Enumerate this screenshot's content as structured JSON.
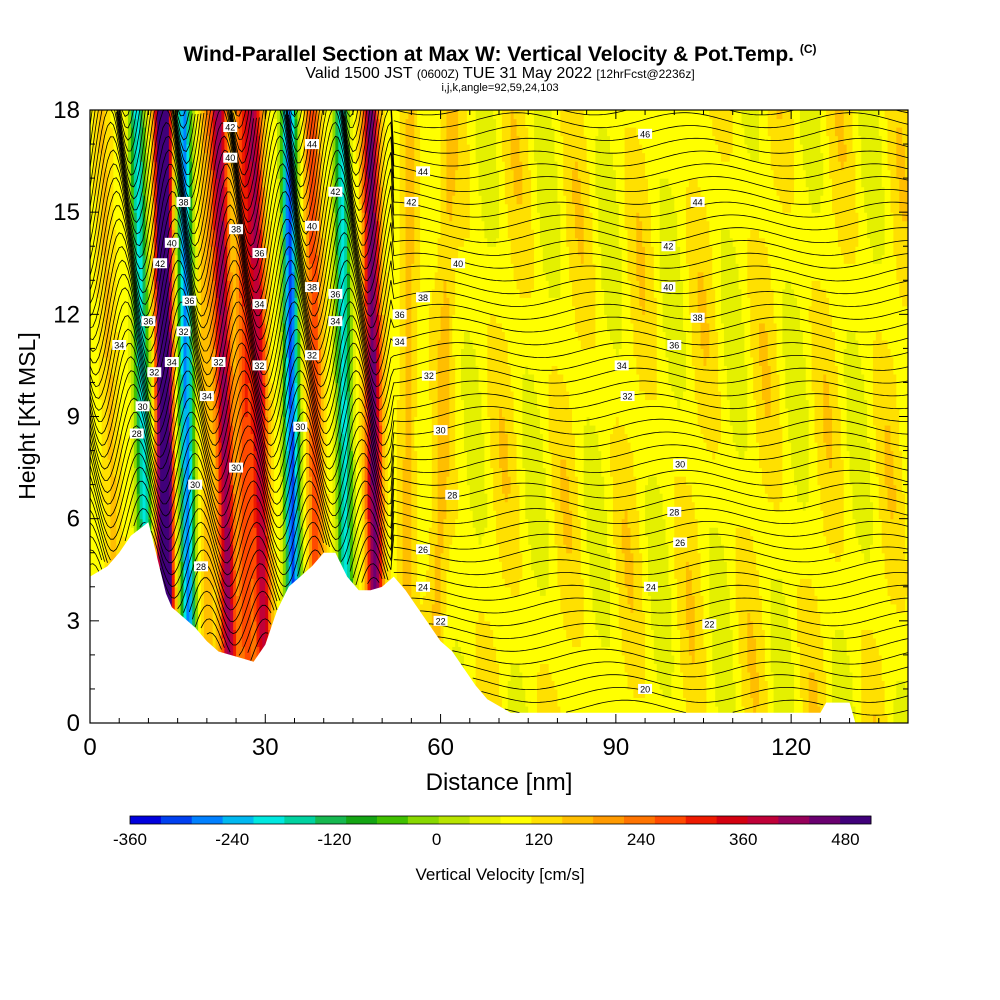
{
  "title": {
    "main": "Wind-Parallel Section at Max W: Vertical Velocity & Pot.Temp.",
    "main_mark": "(C)",
    "valid_prefix": "Valid 1500 JST",
    "valid_utc": "(0600Z)",
    "valid_date": "TUE 31 May 2022",
    "valid_fcst": "[12hrFcst@2236z]",
    "indices": "i,j,k,angle=92,59,24,103"
  },
  "colors": {
    "terrain": "#ffffff",
    "contour": "#000000",
    "bins": [
      "#0000dd",
      "#0040f0",
      "#0080ff",
      "#00b8f0",
      "#00e8e0",
      "#00d2a0",
      "#16b850",
      "#14a514",
      "#40c000",
      "#88d800",
      "#b8e400",
      "#e4f000",
      "#ffff00",
      "#ffe000",
      "#ffbe00",
      "#ff9a00",
      "#ff7400",
      "#ff4a00",
      "#ee1a00",
      "#d40010",
      "#c00038",
      "#96005a",
      "#6a0070",
      "#40007a"
    ]
  },
  "chart_data": {
    "type": "heatmap",
    "xlabel": "Distance [nm]",
    "ylabel": "Height [Kft MSL]",
    "xlim": [
      0,
      140
    ],
    "ylim": [
      0,
      18
    ],
    "x_ticks": [
      0,
      30,
      60,
      90,
      120
    ],
    "y_ticks": [
      0,
      3,
      6,
      9,
      12,
      15,
      18
    ],
    "colorbar": {
      "label": "Vertical Velocity [cm/s]",
      "min": -360,
      "max": 510,
      "step": 30,
      "tick_values": [
        -360,
        -240,
        -120,
        0,
        120,
        240,
        360,
        480
      ]
    },
    "vertical_velocity_bands": [
      {
        "x_bottom": 5,
        "x_top": 2,
        "w": 45
      },
      {
        "x_bottom": 10,
        "x_top": 8,
        "w": -240
      },
      {
        "x_bottom": 13,
        "x_top": 12.5,
        "w": 480
      },
      {
        "x_bottom": 17,
        "x_top": 16,
        "w": -300
      },
      {
        "x_bottom": 20,
        "x_top": 20,
        "w": 60
      },
      {
        "x_bottom": 24,
        "x_top": 22,
        "w": 270
      },
      {
        "x_bottom": 27,
        "x_top": 26,
        "w": 150
      },
      {
        "x_bottom": 30,
        "x_top": 28,
        "w": 240
      },
      {
        "x_bottom": 35,
        "x_top": 34,
        "w": -330
      },
      {
        "x_bottom": 39,
        "x_top": 38,
        "w": 150
      },
      {
        "x_bottom": 44,
        "x_top": 43,
        "w": -240
      },
      {
        "x_bottom": 49,
        "x_top": 48,
        "w": 300
      },
      {
        "x_bottom": 54,
        "x_top": 55,
        "w": 60
      },
      {
        "x_bottom": 59,
        "x_top": 62,
        "w": 90
      }
    ],
    "terrain_height_kft": [
      {
        "x": 0,
        "z": 4.3
      },
      {
        "x": 3,
        "z": 4.6
      },
      {
        "x": 5,
        "z": 5.0
      },
      {
        "x": 7,
        "z": 5.5
      },
      {
        "x": 10,
        "z": 5.9
      },
      {
        "x": 11,
        "z": 5.2
      },
      {
        "x": 12,
        "z": 4.5
      },
      {
        "x": 13,
        "z": 3.8
      },
      {
        "x": 14,
        "z": 3.4
      },
      {
        "x": 16,
        "z": 3.1
      },
      {
        "x": 18,
        "z": 2.8
      },
      {
        "x": 20,
        "z": 2.4
      },
      {
        "x": 22,
        "z": 2.1
      },
      {
        "x": 24,
        "z": 2.0
      },
      {
        "x": 26,
        "z": 1.9
      },
      {
        "x": 28,
        "z": 1.8
      },
      {
        "x": 30,
        "z": 2.3
      },
      {
        "x": 32,
        "z": 3.3
      },
      {
        "x": 34,
        "z": 4.0
      },
      {
        "x": 36,
        "z": 4.3
      },
      {
        "x": 38,
        "z": 4.6
      },
      {
        "x": 40,
        "z": 5.0
      },
      {
        "x": 42,
        "z": 5.0
      },
      {
        "x": 44,
        "z": 4.3
      },
      {
        "x": 46,
        "z": 3.9
      },
      {
        "x": 48,
        "z": 3.9
      },
      {
        "x": 50,
        "z": 4.0
      },
      {
        "x": 52,
        "z": 4.3
      },
      {
        "x": 54,
        "z": 3.9
      },
      {
        "x": 56,
        "z": 3.4
      },
      {
        "x": 58,
        "z": 2.9
      },
      {
        "x": 60,
        "z": 2.4
      },
      {
        "x": 62,
        "z": 2.1
      },
      {
        "x": 64,
        "z": 1.6
      },
      {
        "x": 66,
        "z": 1.1
      },
      {
        "x": 68,
        "z": 0.7
      },
      {
        "x": 70,
        "z": 0.5
      },
      {
        "x": 72,
        "z": 0.3
      },
      {
        "x": 125,
        "z": 0.3
      },
      {
        "x": 126,
        "z": 0.6
      },
      {
        "x": 130,
        "z": 0.6
      },
      {
        "x": 131,
        "z": 0.0
      },
      {
        "x": 140,
        "z": 0.0
      }
    ],
    "potential_temperature_contours": [
      {
        "label": "20",
        "label_x": 95,
        "label_z": 1.0
      },
      {
        "label": "22",
        "label_x": 60,
        "label_z": 3.0
      },
      {
        "label": "22",
        "label_x": 106,
        "label_z": 2.9
      },
      {
        "label": "24",
        "label_x": 57,
        "label_z": 4.0
      },
      {
        "label": "24",
        "label_x": 96,
        "label_z": 4.0
      },
      {
        "label": "26",
        "label_x": 57,
        "label_z": 5.1
      },
      {
        "label": "26",
        "label_x": 101,
        "label_z": 5.3
      },
      {
        "label": "28",
        "label_x": 62,
        "label_z": 6.7
      },
      {
        "label": "28",
        "label_x": 100,
        "label_z": 6.2
      },
      {
        "label": "28",
        "label_x": 19,
        "label_z": 4.6
      },
      {
        "label": "28",
        "label_x": 8,
        "label_z": 8.5
      },
      {
        "label": "30",
        "label_x": 60,
        "label_z": 8.6
      },
      {
        "label": "30",
        "label_x": 101,
        "label_z": 7.6
      },
      {
        "label": "30",
        "label_x": 36,
        "label_z": 8.7
      },
      {
        "label": "30",
        "label_x": 25,
        "label_z": 7.5
      },
      {
        "label": "30",
        "label_x": 18,
        "label_z": 7.0
      },
      {
        "label": "30",
        "label_x": 9,
        "label_z": 9.3
      },
      {
        "label": "32",
        "label_x": 58,
        "label_z": 10.2
      },
      {
        "label": "32",
        "label_x": 92,
        "label_z": 9.6
      },
      {
        "label": "32",
        "label_x": 38,
        "label_z": 10.8
      },
      {
        "label": "32",
        "label_x": 29,
        "label_z": 10.5
      },
      {
        "label": "32",
        "label_x": 22,
        "label_z": 10.6
      },
      {
        "label": "32",
        "label_x": 16,
        "label_z": 11.5
      },
      {
        "label": "32",
        "label_x": 11,
        "label_z": 10.3
      },
      {
        "label": "34",
        "label_x": 53,
        "label_z": 11.2
      },
      {
        "label": "34",
        "label_x": 91,
        "label_z": 10.5
      },
      {
        "label": "34",
        "label_x": 42,
        "label_z": 11.8
      },
      {
        "label": "34",
        "label_x": 29,
        "label_z": 12.3
      },
      {
        "label": "34",
        "label_x": 20,
        "label_z": 9.6
      },
      {
        "label": "34",
        "label_x": 14,
        "label_z": 10.6
      },
      {
        "label": "34",
        "label_x": 5,
        "label_z": 11.1
      },
      {
        "label": "36",
        "label_x": 53,
        "label_z": 12.0
      },
      {
        "label": "36",
        "label_x": 100,
        "label_z": 11.1
      },
      {
        "label": "36",
        "label_x": 42,
        "label_z": 12.6
      },
      {
        "label": "36",
        "label_x": 29,
        "label_z": 13.8
      },
      {
        "label": "36",
        "label_x": 17,
        "label_z": 12.4
      },
      {
        "label": "36",
        "label_x": 10,
        "label_z": 11.8
      },
      {
        "label": "38",
        "label_x": 57,
        "label_z": 12.5
      },
      {
        "label": "38",
        "label_x": 104,
        "label_z": 11.9
      },
      {
        "label": "38",
        "label_x": 38,
        "label_z": 12.8
      },
      {
        "label": "38",
        "label_x": 25,
        "label_z": 14.5
      },
      {
        "label": "38",
        "label_x": 16,
        "label_z": 15.3
      },
      {
        "label": "40",
        "label_x": 63,
        "label_z": 13.5
      },
      {
        "label": "40",
        "label_x": 99,
        "label_z": 12.8
      },
      {
        "label": "40",
        "label_x": 38,
        "label_z": 14.6
      },
      {
        "label": "40",
        "label_x": 24,
        "label_z": 16.6
      },
      {
        "label": "40",
        "label_x": 14,
        "label_z": 14.1
      },
      {
        "label": "42",
        "label_x": 55,
        "label_z": 15.3
      },
      {
        "label": "42",
        "label_x": 99,
        "label_z": 14.0
      },
      {
        "label": "42",
        "label_x": 24,
        "label_z": 17.5
      },
      {
        "label": "42",
        "label_x": 12,
        "label_z": 13.5
      },
      {
        "label": "42",
        "label_x": 42,
        "label_z": 15.6
      },
      {
        "label": "44",
        "label_x": 57,
        "label_z": 16.2
      },
      {
        "label": "44",
        "label_x": 104,
        "label_z": 15.3
      },
      {
        "label": "44",
        "label_x": 38,
        "label_z": 17.0
      },
      {
        "label": "46",
        "label_x": 95,
        "label_z": 17.3
      }
    ]
  }
}
